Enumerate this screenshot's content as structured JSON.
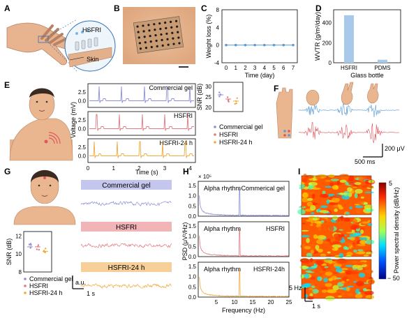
{
  "panels": {
    "a": "A",
    "b": "B",
    "c": "C",
    "d": "D",
    "e": "E",
    "f": "F",
    "g": "G",
    "h": "H",
    "i": "I"
  },
  "panel_a": {
    "hsfri_label": "HSFRI",
    "skin_label": "Skin"
  },
  "colors": {
    "commercial": "#8c8fd6",
    "hsfri": "#e07a80",
    "hsfri24": "#f0a93a",
    "blue_emg": "#5b9bd5",
    "red_emg": "#e0565c",
    "bar": "#a9c9ea",
    "line_c": "#5b9bd5",
    "band_commercial": "#c5c6ee",
    "band_hsfri": "#f1b5b8",
    "band_hsfri24": "#f7cf98"
  },
  "chart_c": {
    "type": "line",
    "xlabel": "Time (day)",
    "ylabel": "Weight loss (%)",
    "x": [
      0,
      1,
      2,
      3,
      4,
      5,
      6,
      7
    ],
    "y": [
      0,
      0,
      0,
      0,
      0,
      0,
      0,
      0
    ],
    "yticks": [
      "-4",
      "0",
      "4",
      "8"
    ],
    "xticks": [
      "0",
      "1",
      "2",
      "3",
      "4",
      "5",
      "6",
      "7"
    ]
  },
  "chart_d": {
    "type": "bar",
    "ylabel": "WVTR (g/m²/day)",
    "categories": [
      "HSFRI",
      "PDMS"
    ],
    "values": [
      475,
      30
    ],
    "xlabel": "Glass bottle",
    "yticks": [
      "0",
      "200",
      "400"
    ]
  },
  "chart_e": {
    "ylabel": "Voltage (mV)",
    "xlabel": "Time (s)",
    "xticks": [
      "0",
      "1",
      "2",
      "3",
      "4"
    ],
    "yticks": [
      "2.5",
      "0.0"
    ],
    "traces": [
      {
        "label": "Commercial gel"
      },
      {
        "label": "HSFRI"
      },
      {
        "label": "HSFRI-24 h"
      }
    ]
  },
  "chart_e_snr": {
    "ylabel": "SNR (dB)",
    "yticks": [
      "20",
      "25",
      "30"
    ],
    "legend": [
      "Commercial gel",
      "HSFRI",
      "HSFRI-24 h"
    ],
    "means": [
      26,
      24,
      23
    ]
  },
  "chart_f": {
    "scale_v": "200 μV",
    "scale_t": "500 ms"
  },
  "chart_g": {
    "bands": [
      "Commercial gel",
      "HSFRI",
      "HSFRI-24 h"
    ],
    "au": "a.u.",
    "scale_t": "1 s"
  },
  "chart_g_snr": {
    "ylabel": "SNR (dB)",
    "yticks": [
      "8",
      "10",
      "12"
    ],
    "legend": [
      "Commercial gel",
      "HSFRI",
      "HSFRI-24 h"
    ],
    "means": [
      10.8,
      10.8,
      10.3
    ]
  },
  "chart_h": {
    "ylabel": "PSD (μV²/Hz)",
    "xlabel": "Frequency (Hz)",
    "exponent": "× 10⁵",
    "xticks": [
      "5",
      "10",
      "15",
      "20",
      "25"
    ],
    "yticks": [
      "0.0",
      "0.5",
      "1.0",
      "1.5"
    ],
    "annotation": "Alpha rhythm",
    "traces": [
      "Commerical gel",
      "HSFRI",
      "HSFRI-24h"
    ]
  },
  "chart_i": {
    "colorbar_label": "Power spectral density (dB/Hz)",
    "cb_max": "5",
    "cb_min": "− 50",
    "scale_f": "5 Hz",
    "scale_t": "1 s"
  }
}
